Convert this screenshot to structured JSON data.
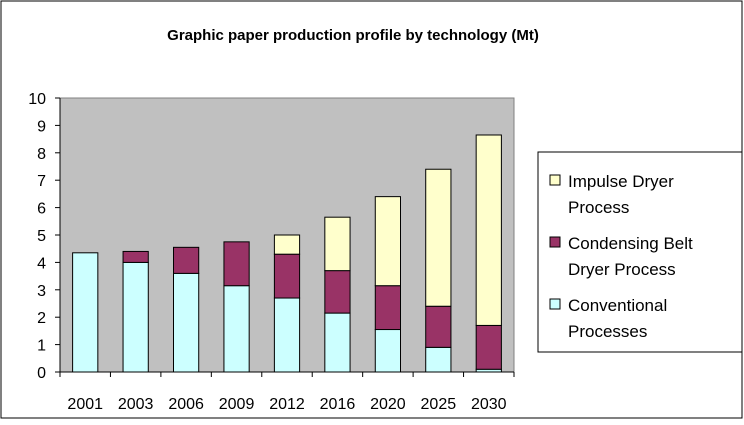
{
  "chart_data": {
    "type": "bar",
    "stacked": true,
    "title": "Graphic paper production profile by technology (Mt)",
    "xlabel": "",
    "ylabel": "",
    "ylim": [
      0,
      10
    ],
    "yticks": [
      "0",
      "1",
      "2",
      "3",
      "4",
      "5",
      "6",
      "7",
      "8",
      "9",
      "10"
    ],
    "grid": false,
    "legend_position": "right",
    "plot_background": "#c0c0c0",
    "categories": [
      "2001",
      "2003",
      "2006",
      "2009",
      "2012",
      "2016",
      "2020",
      "2025",
      "2030"
    ],
    "series": [
      {
        "name": "Conventional Processes",
        "color": "#ccffff",
        "values": [
          4.35,
          4.0,
          3.6,
          3.15,
          2.7,
          2.15,
          1.55,
          0.9,
          0.1
        ]
      },
      {
        "name": "Condensing Belt Dryer Process",
        "color": "#993366",
        "values": [
          0,
          0.4,
          0.95,
          1.6,
          1.6,
          1.55,
          1.6,
          1.5,
          1.6
        ]
      },
      {
        "name": "Impulse Dryer Process",
        "color": "#ffffcc",
        "values": [
          0,
          0,
          0,
          0,
          0.7,
          1.95,
          3.25,
          5.0,
          6.95
        ]
      }
    ],
    "legend_order": [
      "Impulse Dryer Process",
      "Condensing Belt Dryer Process",
      "Conventional Processes"
    ],
    "legend_labels": [
      [
        "Impulse Dryer",
        "Process"
      ],
      [
        "Condensing Belt",
        "Dryer Process"
      ],
      [
        "Conventional",
        "Processes"
      ]
    ]
  }
}
